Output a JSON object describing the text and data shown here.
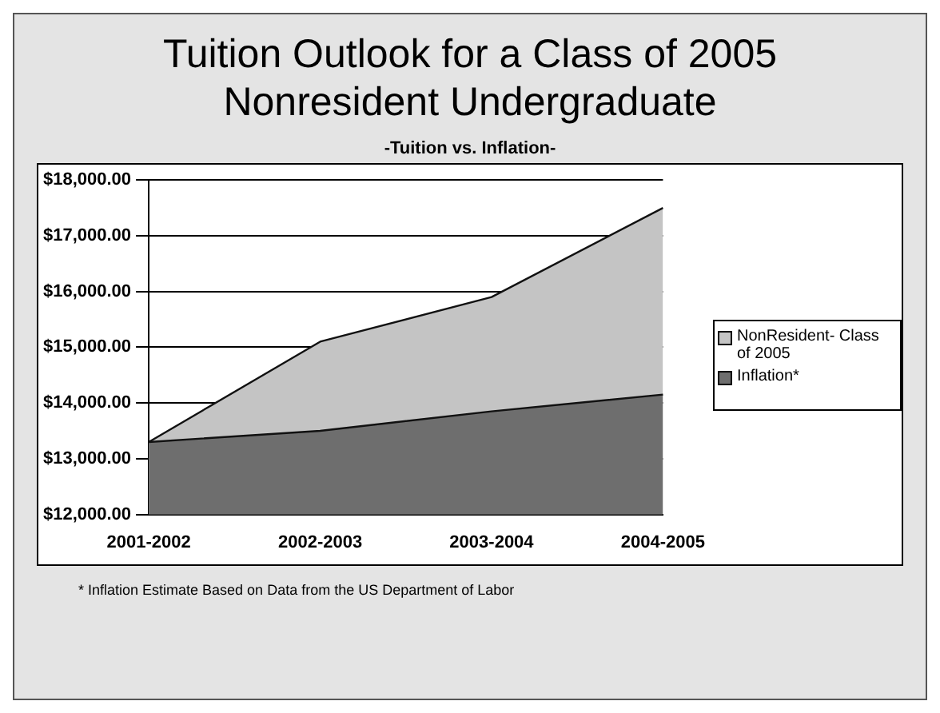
{
  "chart_data": {
    "type": "area",
    "title": "Tuition Outlook for a Class of 2005 Nonresident Undergraduate",
    "subtitle": "-Tuition vs. Inflation-",
    "categories": [
      "2001-2002",
      "2002-2003",
      "2003-2004",
      "2004-2005"
    ],
    "series": [
      {
        "name": "NonResident- Class of 2005",
        "color": "#c4c4c4",
        "values": [
          13300,
          15100,
          15900,
          17500
        ]
      },
      {
        "name": "Inflation*",
        "color": "#6e6e6e",
        "values": [
          13300,
          13500,
          13850,
          14150
        ]
      }
    ],
    "ylim": [
      12000,
      18000
    ],
    "yticks": [
      {
        "value": 12000,
        "label": "$12,000.00"
      },
      {
        "value": 13000,
        "label": "$13,000.00"
      },
      {
        "value": 14000,
        "label": "$14,000.00"
      },
      {
        "value": 15000,
        "label": "$15,000.00"
      },
      {
        "value": 16000,
        "label": "$16,000.00"
      },
      {
        "value": 17000,
        "label": "$17,000.00"
      },
      {
        "value": 18000,
        "label": "$18,000.00"
      }
    ],
    "grid": "y",
    "legend": "right",
    "annotations": [
      "* Inflation Estimate Based on Data from the US Department of Labor"
    ]
  }
}
